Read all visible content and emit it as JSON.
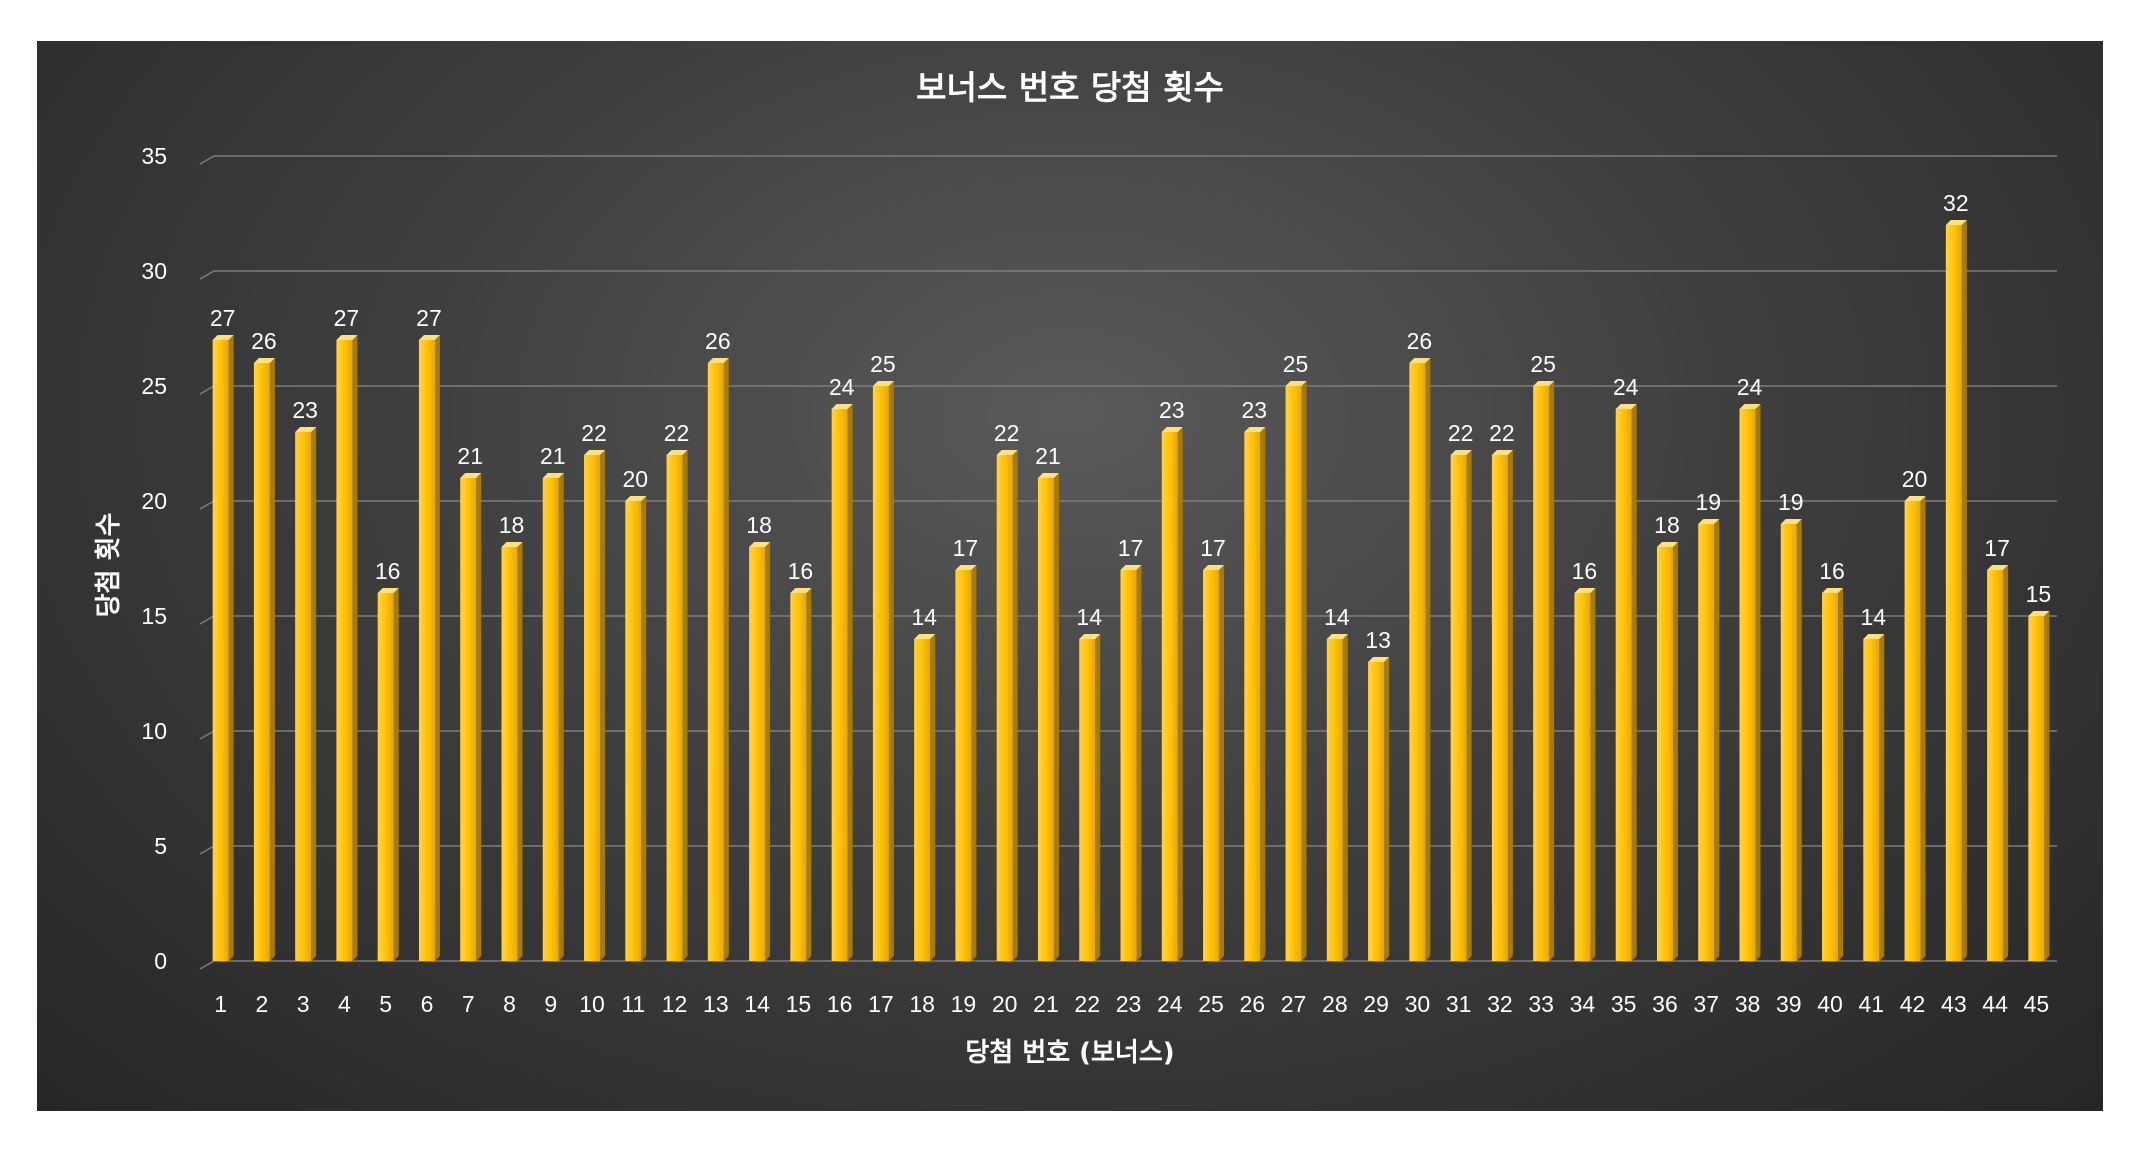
{
  "chart_data": {
    "type": "bar",
    "title": "보너스 번호 당첨 횟수",
    "xlabel": "당첨 번호 (보너스)",
    "ylabel": "당첨 횟수",
    "ylim": [
      0,
      35
    ],
    "yticks": [
      0,
      5,
      10,
      15,
      20,
      25,
      30,
      35
    ],
    "categories": [
      "1",
      "2",
      "3",
      "4",
      "5",
      "6",
      "7",
      "8",
      "9",
      "10",
      "11",
      "12",
      "13",
      "14",
      "15",
      "16",
      "17",
      "18",
      "19",
      "20",
      "21",
      "22",
      "23",
      "24",
      "25",
      "26",
      "27",
      "28",
      "29",
      "30",
      "31",
      "32",
      "33",
      "34",
      "35",
      "36",
      "37",
      "38",
      "39",
      "40",
      "41",
      "42",
      "43",
      "44",
      "45"
    ],
    "values": [
      27,
      26,
      23,
      27,
      16,
      27,
      21,
      18,
      21,
      22,
      20,
      22,
      26,
      18,
      16,
      24,
      25,
      14,
      17,
      22,
      21,
      14,
      17,
      23,
      17,
      23,
      25,
      14,
      13,
      26,
      22,
      22,
      25,
      16,
      24,
      18,
      19,
      24,
      19,
      16,
      14,
      20,
      32,
      17,
      15
    ],
    "grid": true,
    "legend": "none",
    "colors": {
      "bar": "#ffc000",
      "background": "#404040",
      "text": "#ffffff",
      "grid": "#7d7d7d"
    }
  }
}
